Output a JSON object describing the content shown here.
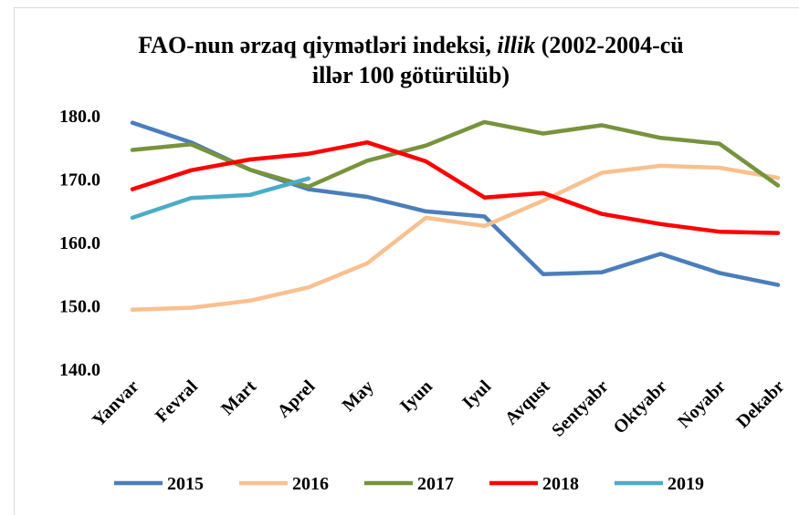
{
  "chart_data": {
    "type": "line",
    "title": [
      "FAO-nun ərzaq qiymətləri indeksi,",
      "illik",
      "(2002-2004-cü",
      "illər 100 götürülüb)"
    ],
    "categories": [
      "Yanvar",
      "Fevral",
      "Mart",
      "Aprel",
      "May",
      "Iyun",
      "Iyul",
      "Avqust",
      "Sentyabr",
      "Oktyabr",
      "Noyabr",
      "Dekabr"
    ],
    "series": [
      {
        "name": "2015",
        "color": "#4a7ebb",
        "values": [
          178.9,
          175.8,
          171.5,
          168.4,
          167.2,
          164.9,
          164.1,
          155.0,
          155.3,
          158.2,
          155.2,
          153.3
        ]
      },
      {
        "name": "2016",
        "color": "#f9c08f",
        "values": [
          149.4,
          149.7,
          150.8,
          152.9,
          156.7,
          163.9,
          162.6,
          166.6,
          171.0,
          172.1,
          171.8,
          170.2
        ]
      },
      {
        "name": "2017",
        "color": "#77933c",
        "values": [
          174.6,
          175.5,
          171.5,
          168.8,
          172.9,
          175.3,
          179.0,
          177.2,
          178.5,
          176.5,
          175.6,
          169.0
        ]
      },
      {
        "name": "2018",
        "color": "#ff0000",
        "values": [
          168.4,
          171.4,
          173.1,
          174.0,
          175.8,
          172.8,
          167.1,
          167.8,
          164.5,
          162.9,
          161.7,
          161.5
        ]
      },
      {
        "name": "2019",
        "color": "#4bacc6",
        "values": [
          163.9,
          167.0,
          167.5,
          170.1,
          null,
          null,
          null,
          null,
          null,
          null,
          null,
          null
        ]
      }
    ],
    "ylim": [
      140,
      180
    ],
    "yticks": [
      {
        "value": 140,
        "label": "140.0"
      },
      {
        "value": 150,
        "label": "150.0"
      },
      {
        "value": 160,
        "label": "160.0"
      },
      {
        "value": 170,
        "label": "170.0"
      },
      {
        "value": 180,
        "label": "180.0"
      }
    ],
    "grid": false,
    "legend": "bottom"
  }
}
